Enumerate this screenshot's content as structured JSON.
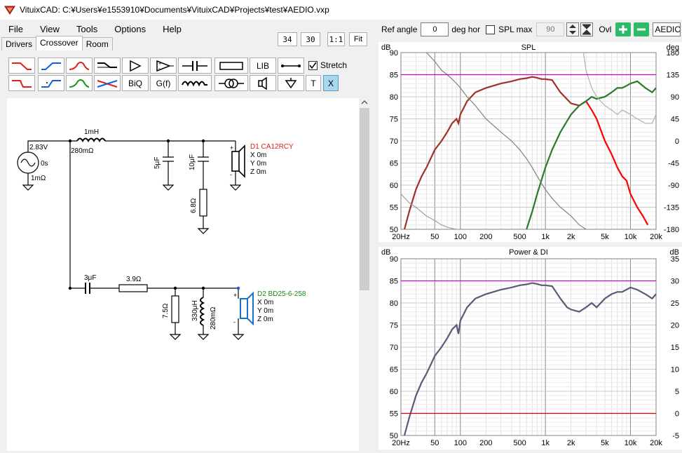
{
  "window": {
    "title": "VituixCAD: C:¥Users¥e1553910¥Documents¥VituixCAD¥Projects¥test¥AEDIO.vxp"
  },
  "menu": [
    "File",
    "View",
    "Tools",
    "Options",
    "Help"
  ],
  "tabs": [
    "Drivers",
    "Crossover",
    "Room"
  ],
  "view_buttons": {
    "a": "34",
    "b": "30",
    "c": "1:1",
    "d": "Fit"
  },
  "toolbar": {
    "biq": "BiQ",
    "gf": "G(f)",
    "lib": "LIB",
    "stretch": "Stretch",
    "t": "T",
    "x": "X"
  },
  "right_toolbar": {
    "ref_angle_label": "Ref angle",
    "ref_angle_value": "0",
    "deg_hor": "deg hor",
    "spl_max_label": "SPL max",
    "spl_max_value": "90",
    "ovl": "Ovl",
    "driver_field": "AEDIO"
  },
  "schematic": {
    "source_v": "2.83V",
    "source_delay": "0s",
    "source_r": "1mΩ",
    "l1": "1mH",
    "l1_r": "280mΩ",
    "c1": "5μF",
    "c2": "10μF",
    "r1": "6.8Ω",
    "d1": {
      "name": "D1 CA12RCY",
      "x": "X 0m",
      "y": "Y 0m",
      "z": "Z 0m",
      "color": "#e02020"
    },
    "c3": "3μF",
    "r2": "3.9Ω",
    "r3": "7.5Ω",
    "l2": "330μH",
    "l2_r": "280mΩ",
    "d2": {
      "name": "D2 BD25-6-258",
      "x": "X 0m",
      "y": "Y 0m",
      "z": "Z 0m",
      "color": "#1a8a1a"
    }
  },
  "charts": {
    "spl": {
      "title": "SPL",
      "left_unit": "dB",
      "right_unit": "deg"
    },
    "power": {
      "title": "Power & DI",
      "left_unit": "dB",
      "right_unit": "dB"
    }
  },
  "chart_data": [
    {
      "type": "line",
      "title": "SPL",
      "xscale": "log",
      "xlim": [
        20,
        20000
      ],
      "ylim": [
        50,
        90
      ],
      "y2lim": [
        -180,
        180
      ],
      "x_ticks": [
        "20Hz",
        "50",
        "100",
        "200",
        "500",
        "1k",
        "2k",
        "5k",
        "10k",
        "20k"
      ],
      "y_ticks": [
        "90",
        "85",
        "80",
        "75",
        "70",
        "65",
        "60",
        "55",
        "50"
      ],
      "y2_ticks": [
        "180",
        "135",
        "90",
        "45",
        "0",
        "-45",
        "-90",
        "-135",
        "-180"
      ],
      "series": [
        {
          "color": "#a03028",
          "x": [
            22,
            25,
            30,
            35,
            40,
            50,
            60,
            70,
            80,
            90,
            95,
            100,
            120,
            150,
            200,
            300,
            400,
            500,
            600,
            700,
            800,
            900,
            1000,
            1200,
            1500,
            2000,
            2500,
            3000
          ],
          "y": [
            50,
            54,
            59,
            62,
            64,
            68,
            70,
            72,
            74,
            75,
            74,
            76,
            79,
            81,
            82,
            83,
            83.5,
            84,
            84.2,
            84.5,
            84.3,
            84,
            84,
            83.8,
            81,
            78.5,
            78,
            79
          ]
        },
        {
          "color": "#ff0000",
          "x": [
            3000,
            3500,
            4000,
            5000,
            6000,
            7000,
            8000,
            9000,
            10000,
            12000,
            14000,
            16000
          ],
          "y": [
            79,
            77,
            75,
            70,
            67,
            64,
            62,
            61,
            58,
            55,
            53,
            51
          ]
        },
        {
          "color": "#2a7a2a",
          "x": [
            600,
            700,
            800,
            1000,
            1200,
            1500,
            2000,
            2500,
            3000,
            3500,
            4000,
            5000,
            6000,
            7000,
            8000,
            9000,
            10000,
            12000,
            15000,
            18000,
            20000
          ],
          "y": [
            50,
            54,
            58,
            64,
            68,
            72,
            76,
            78,
            79,
            80,
            79.5,
            80,
            81,
            82,
            82,
            82.5,
            83,
            83.5,
            82,
            81,
            82
          ]
        },
        {
          "color": "#808080",
          "x": [
            40,
            50,
            60,
            70,
            80,
            90,
            100,
            120,
            150,
            200,
            300,
            400,
            500,
            600,
            700,
            800,
            1000,
            1200,
            1500,
            2000,
            2500,
            3000
          ],
          "y": [
            90,
            88,
            86,
            85,
            84,
            83,
            82,
            80,
            78,
            75,
            72,
            70,
            68,
            66,
            64,
            62,
            59,
            57,
            55,
            53,
            51,
            50
          ]
        },
        {
          "color": "#b0b0b0",
          "x": [
            2800,
            3000,
            3500,
            4000,
            5000,
            6000,
            7000,
            8000,
            10000,
            12000,
            15000,
            18000,
            20000
          ],
          "y": [
            90,
            86,
            82,
            80,
            78,
            77,
            76,
            77,
            76,
            75,
            74,
            74,
            76
          ]
        },
        {
          "color": "#a0a0a0",
          "x": [
            20,
            25,
            30,
            40,
            50,
            60,
            70,
            80,
            90
          ],
          "y": [
            58,
            56,
            55,
            53,
            52,
            51,
            50.5,
            50.2,
            50
          ]
        },
        {
          "color": "#cc00cc",
          "x": [
            20,
            20000
          ],
          "y": [
            85,
            85
          ]
        }
      ]
    },
    {
      "type": "line",
      "title": "Power & DI",
      "xscale": "log",
      "xlim": [
        20,
        20000
      ],
      "ylim": [
        50,
        90
      ],
      "y2lim": [
        -5,
        35
      ],
      "x_ticks": [
        "20Hz",
        "50",
        "100",
        "200",
        "500",
        "1k",
        "2k",
        "5k",
        "10k",
        "20k"
      ],
      "y_ticks": [
        "90",
        "85",
        "80",
        "75",
        "70",
        "65",
        "60",
        "55",
        "50"
      ],
      "y2_ticks": [
        "35",
        "30",
        "25",
        "20",
        "15",
        "10",
        "5",
        "0",
        "-5"
      ],
      "series": [
        {
          "color": "#5a5a78",
          "x": [
            22,
            25,
            30,
            35,
            40,
            50,
            60,
            70,
            80,
            90,
            95,
            100,
            120,
            150,
            200,
            300,
            400,
            500,
            600,
            700,
            800,
            900,
            1000,
            1200,
            1500,
            1800,
            2000,
            2500,
            3000,
            3500,
            4000,
            5000,
            6000,
            7000,
            8000,
            10000,
            12000,
            15000,
            18000,
            20000
          ],
          "y": [
            50,
            54,
            59,
            62,
            64,
            68,
            70,
            72,
            74,
            75,
            73,
            76,
            79,
            81,
            82,
            83,
            83.5,
            84,
            84.2,
            84.5,
            84.3,
            84,
            84,
            83.8,
            81,
            79,
            78.5,
            78,
            79,
            80,
            79,
            81,
            82,
            82.5,
            82.5,
            83.5,
            83,
            82,
            81,
            82
          ]
        },
        {
          "color": "#dd0000",
          "x": [
            20,
            20000
          ],
          "y": [
            55,
            55
          ]
        },
        {
          "color": "#cc00cc",
          "x": [
            20,
            20000
          ],
          "y": [
            85,
            85
          ]
        }
      ]
    }
  ]
}
